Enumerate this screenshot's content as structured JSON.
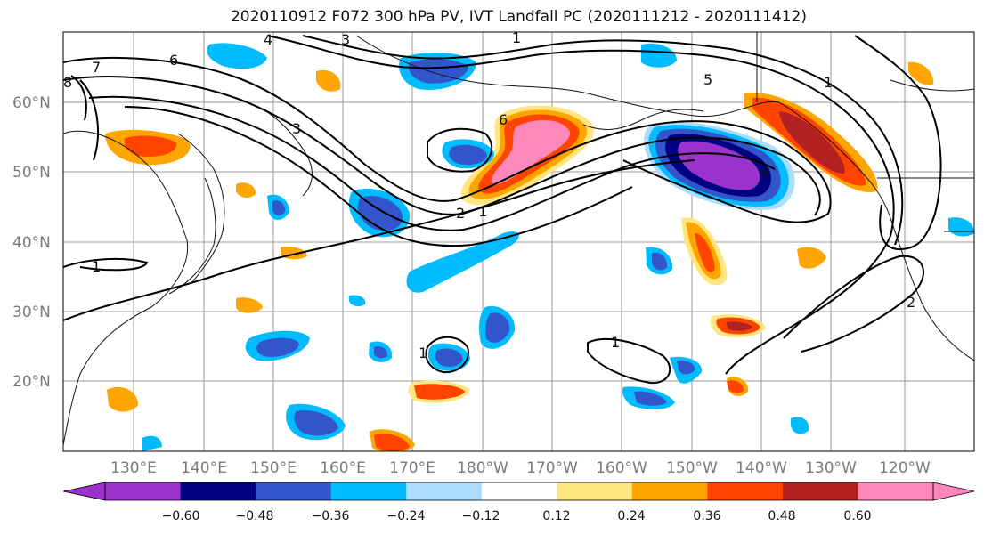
{
  "title": "2020110912 F072 300 hPa PV, IVT Landfall PC (2020111212 - 2020111412)",
  "lat_labels": [
    "60°N",
    "50°N",
    "40°N",
    "30°N",
    "20°N"
  ],
  "lon_labels": [
    "130°E",
    "140°E",
    "150°E",
    "160°E",
    "170°E",
    "180°W",
    "170°W",
    "160°W",
    "150°W",
    "140°W",
    "130°W",
    "120°W"
  ],
  "colorbar": {
    "ticks": [
      "−0.60",
      "−0.48",
      "−0.36",
      "−0.24",
      "−0.12",
      "0.12",
      "0.24",
      "0.36",
      "0.48",
      "0.60"
    ],
    "colors": [
      "#9933cc",
      "#000080",
      "#3355cc",
      "#00bbff",
      "#aaddff",
      "#ffffff",
      "#ffe680",
      "#ffa500",
      "#ff4400",
      "#b22222",
      "#ff88bb"
    ]
  },
  "contour_labels": [
    "7",
    "6",
    "8",
    "5",
    "4",
    "3",
    "2",
    "1"
  ],
  "colors": {
    "purple": "#9933cc",
    "navy": "#000080",
    "blue": "#3355cc",
    "cyan": "#00bbff",
    "lightblue": "#aaddff",
    "yellow": "#ffe680",
    "orange": "#ffa500",
    "redorange": "#ff4400",
    "darkred": "#b22222",
    "pink": "#ff88bb"
  }
}
